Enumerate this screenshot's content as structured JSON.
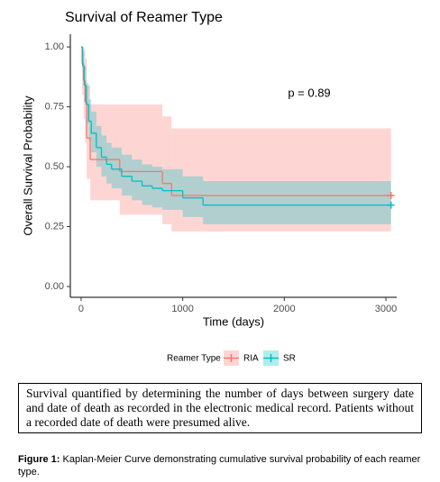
{
  "chart_data": {
    "type": "survival",
    "title": "Survival of Reamer Type",
    "x_label": "Time (days)",
    "y_label": "Overall Survival Probability",
    "annotation": "p = 0.89",
    "legend_title": "Reamer Type",
    "legend": "bottom",
    "xlim": [
      -106,
      3106
    ],
    "xticks": [
      0,
      1000,
      2000,
      3000
    ],
    "ylim": [
      -0.045,
      1.053
    ],
    "yticks": [
      {
        "value": 0,
        "label": "0.00"
      },
      {
        "value": 0.25,
        "label": "0.25"
      },
      {
        "value": 0.5,
        "label": "0.50"
      },
      {
        "value": 0.75,
        "label": "0.75"
      },
      {
        "value": 1,
        "label": "1.00"
      }
    ],
    "series": [
      {
        "name": "RIA",
        "color": "#F8766D",
        "x": [
          0,
          10,
          25,
          40,
          55,
          90,
          380,
          800,
          890,
          3050
        ],
        "values": [
          1.0,
          0.93,
          0.86,
          0.77,
          0.62,
          0.53,
          0.48,
          0.43,
          0.38,
          0.38
        ],
        "lower": [
          1.0,
          0.8,
          0.7,
          0.6,
          0.45,
          0.36,
          0.3,
          0.26,
          0.23,
          0.23
        ],
        "upper": [
          1.0,
          1.0,
          0.99,
          0.95,
          0.84,
          0.76,
          0.76,
          0.71,
          0.66,
          0.66
        ]
      },
      {
        "name": "SR",
        "color": "#00BFC4",
        "x": [
          0,
          15,
          30,
          50,
          75,
          100,
          150,
          200,
          250,
          300,
          400,
          500,
          600,
          700,
          800,
          1000,
          1200,
          3050
        ],
        "values": [
          1.0,
          0.92,
          0.84,
          0.76,
          0.69,
          0.64,
          0.58,
          0.54,
          0.51,
          0.49,
          0.46,
          0.44,
          0.42,
          0.41,
          0.4,
          0.37,
          0.34,
          0.34
        ],
        "lower": [
          1.0,
          0.86,
          0.77,
          0.68,
          0.61,
          0.56,
          0.5,
          0.46,
          0.43,
          0.41,
          0.38,
          0.36,
          0.34,
          0.33,
          0.32,
          0.29,
          0.26,
          0.26
        ],
        "upper": [
          1.0,
          0.98,
          0.92,
          0.85,
          0.78,
          0.73,
          0.67,
          0.63,
          0.6,
          0.58,
          0.55,
          0.53,
          0.51,
          0.5,
          0.49,
          0.46,
          0.44,
          0.44
        ]
      }
    ]
  },
  "note": "Survival quantified by determining the number of days between surgery date and date of death as recorded in the electronic medical record. Patients without a recorded date of death were presumed alive.",
  "figure": {
    "label": "Figure 1:",
    "text": "Kaplan-Meier Curve demonstrating cumulative survival probability of each reamer type."
  }
}
